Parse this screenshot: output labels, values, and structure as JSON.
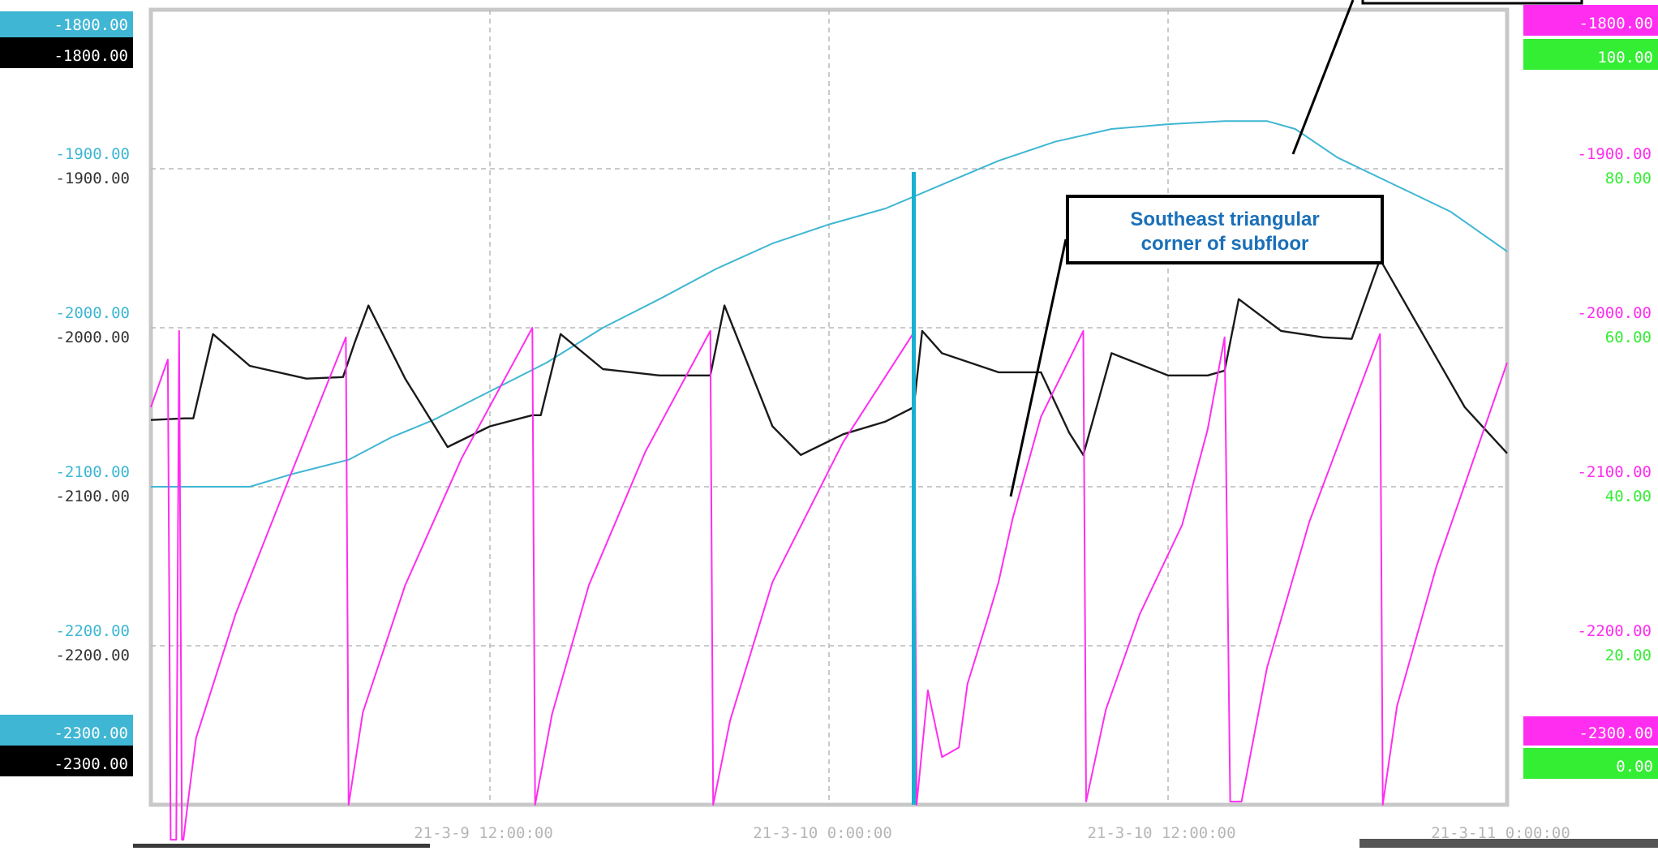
{
  "colors": {
    "cyan_series": "#3fb6d3",
    "black_series": "#1a1a1a",
    "magenta_series": "#ff2df0",
    "green_axis": "#33ee33",
    "grid": "#b8b8b8",
    "frame": "#c8c8c8",
    "cursor": "#19b1d0",
    "annotation_text": "#1a6fb8"
  },
  "chart_data": {
    "type": "line",
    "title": "",
    "xlabel": "",
    "x_ticks": [
      "21-3-9 12:00:00",
      "21-3-10 0:00:00",
      "21-3-10 12:00:00",
      "21-3-11 0:00:00"
    ],
    "x_tick_positions_hours": [
      12,
      24,
      36,
      48
    ],
    "x_range_hours": [
      0,
      48
    ],
    "left_axes": [
      {
        "name": "cyan",
        "min_label": "-2300.00",
        "max_label": "-1800.00",
        "tick_labels": [
          "-1900.00",
          "-2000.00",
          "-2100.00",
          "-2200.00"
        ],
        "ylim": [
          -2300,
          -1800
        ]
      },
      {
        "name": "black",
        "min_label": "-2300.00",
        "max_label": "-1800.00",
        "tick_labels": [
          "-1900.00",
          "-2000.00",
          "-2100.00",
          "-2200.00"
        ],
        "ylim": [
          -2300,
          -1800
        ]
      }
    ],
    "right_axes": [
      {
        "name": "magenta",
        "min_label": "-2300.00",
        "max_label": "-1800.00",
        "tick_labels": [
          "-1900.00",
          "-2000.00",
          "-2100.00",
          "-2200.00"
        ],
        "ylim": [
          -2300,
          -1800
        ]
      },
      {
        "name": "green",
        "min_label": "0.00",
        "max_label": "100.00",
        "tick_labels": [
          "80.00",
          "60.00",
          "40.00",
          "20.00"
        ],
        "ylim": [
          0,
          100
        ]
      }
    ],
    "grid": true,
    "cursor_x_hours": 27,
    "series": [
      {
        "axis": "cyan",
        "color": "#3fb6d3",
        "x": [
          0,
          3.5,
          5,
          7,
          8.5,
          10,
          12,
          14,
          16,
          18,
          20,
          22,
          24,
          26,
          28,
          30,
          32,
          34,
          36,
          38,
          39.5,
          40.5,
          42,
          44,
          46,
          48
        ],
        "y": [
          -2100,
          -2100,
          -2092,
          -2083,
          -2069,
          -2058,
          -2040,
          -2022,
          -2000,
          -1982,
          -1963,
          -1947,
          -1935,
          -1925,
          -1910,
          -1895,
          -1883,
          -1875,
          -1872,
          -1870,
          -1870,
          -1875,
          -1893,
          -1910,
          -1927,
          -1952
        ]
      },
      {
        "axis": "black",
        "color": "#1a1a1a",
        "x": [
          0,
          1.2,
          1.5,
          2.2,
          3.5,
          5.5,
          6.8,
          7.2,
          7.7,
          9,
          10.5,
          12,
          13.5,
          13.8,
          14.5,
          16,
          18,
          19.8,
          20.3,
          22,
          23,
          24.5,
          26,
          27,
          27.3,
          28,
          30,
          31.5,
          32.5,
          33,
          34,
          36,
          37.4,
          38,
          38.5,
          40,
          41.5,
          42.5,
          43.5,
          46.5,
          48
        ],
        "y": [
          -2058,
          -2057,
          -2057,
          -2004,
          -2024,
          -2032,
          -2031,
          -2010,
          -1986,
          -2032,
          -2075,
          -2062,
          -2055,
          -2055,
          -2004,
          -2026,
          -2030,
          -2030,
          -1986,
          -2062,
          -2080,
          -2067,
          -2059,
          -2050,
          -2002,
          -2016,
          -2028,
          -2028,
          -2066,
          -2080,
          -2016,
          -2030,
          -2030,
          -2027,
          -1982,
          -2002,
          -2006,
          -2007,
          -1957,
          -2050,
          -2079
        ]
      },
      {
        "axis": "magenta",
        "color": "#ff2df0",
        "x": [
          0,
          0.6,
          0.7,
          0.8,
          0.9,
          1.0,
          1.1,
          1.15,
          1.3,
          1.6,
          3,
          5,
          6.9,
          7,
          7.5,
          9,
          11,
          13.5,
          13.6,
          14.2,
          15.5,
          17.5,
          19.8,
          19.9,
          20.5,
          22,
          24.5,
          27,
          27.1,
          27.5,
          28,
          28.6,
          28.9,
          29.6,
          30,
          30.5,
          31.5,
          33,
          33.1,
          33.8,
          35,
          36.5,
          37.4,
          38,
          38.2,
          38.6,
          39.5,
          41,
          43.5,
          43.6,
          44.1,
          45.5,
          48
        ],
        "y": [
          -2050,
          -2020,
          -2322,
          -2322,
          -2322,
          -2002,
          -2322,
          -2322,
          -2300,
          -2258,
          -2180,
          -2090,
          -2006,
          -2300,
          -2242,
          -2162,
          -2082,
          -2000,
          -2300,
          -2243,
          -2162,
          -2078,
          -2002,
          -2300,
          -2247,
          -2160,
          -2072,
          -2003,
          -2300,
          -2228,
          -2270,
          -2264,
          -2224,
          -2184,
          -2160,
          -2120,
          -2056,
          -2002,
          -2298,
          -2240,
          -2180,
          -2124,
          -2064,
          -2006,
          -2298,
          -2298,
          -2214,
          -2122,
          -2004,
          -2300,
          -2238,
          -2150,
          -2022
        ]
      }
    ],
    "annotations": [
      {
        "text_lines": [
          "Southeast triangular",
          "corner of subfloor"
        ]
      }
    ]
  },
  "labels": {
    "left_top_cyan": "-1800.00",
    "left_top_black": "-1800.00",
    "left_bottom_cyan": "-2300.00",
    "left_bottom_black": "-2300.00",
    "right_top_magenta": "-1800.00",
    "right_top_green": "100.00",
    "right_bottom_magenta": "-2300.00",
    "right_bottom_green": "0.00"
  }
}
